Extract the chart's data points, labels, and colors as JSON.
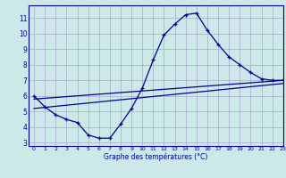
{
  "title": "Graphe des températures (°C)",
  "bg_color": "#cce8e8",
  "grid_color": "#aaaacc",
  "line_color": "#00008b",
  "axis_bar_color": "#00008b",
  "xlim": [
    -0.5,
    23
  ],
  "ylim": [
    2.8,
    11.8
  ],
  "xticks": [
    0,
    1,
    2,
    3,
    4,
    5,
    6,
    7,
    8,
    9,
    10,
    11,
    12,
    13,
    14,
    15,
    16,
    17,
    18,
    19,
    20,
    21,
    22,
    23
  ],
  "yticks": [
    3,
    4,
    5,
    6,
    7,
    8,
    9,
    10,
    11
  ],
  "hourly_temps": [
    6.0,
    5.3,
    4.8,
    4.5,
    4.3,
    3.5,
    3.3,
    3.3,
    4.2,
    5.2,
    6.5,
    8.3,
    9.9,
    10.6,
    11.2,
    11.3,
    10.2,
    9.3,
    8.5,
    8.0,
    7.5,
    7.1,
    7.0,
    7.0
  ],
  "line2_x": [
    0,
    23
  ],
  "line2_y": [
    5.8,
    7.0
  ],
  "line3_x": [
    0,
    23
  ],
  "line3_y": [
    5.2,
    6.8
  ]
}
